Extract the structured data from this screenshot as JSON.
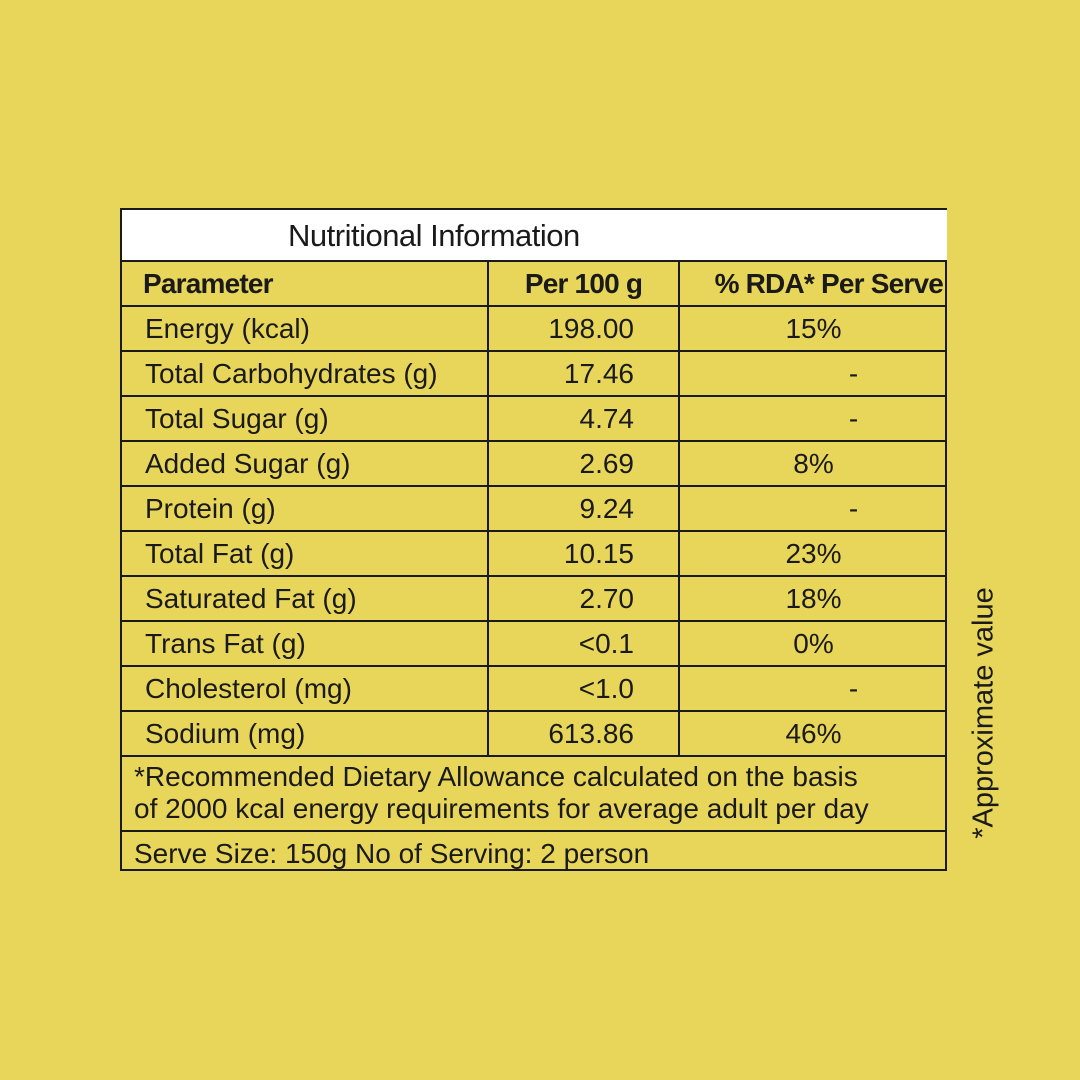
{
  "title": "Nutritional Information",
  "headers": {
    "parameter": "Parameter",
    "per100": "Per 100 g",
    "rda": "% RDA* Per Serve"
  },
  "rows": [
    {
      "parameter": "Energy (kcal)",
      "per100": "198.00",
      "rda": "15%"
    },
    {
      "parameter": "Total Carbohydrates (g)",
      "per100": "17.46",
      "rda": "-"
    },
    {
      "parameter": "Total Sugar (g)",
      "per100": "4.74",
      "rda": "-"
    },
    {
      "parameter": "Added Sugar (g)",
      "per100": "2.69",
      "rda": "8%"
    },
    {
      "parameter": "Protein (g)",
      "per100": "9.24",
      "rda": "-"
    },
    {
      "parameter": "Total Fat (g)",
      "per100": "10.15",
      "rda": "23%"
    },
    {
      "parameter": "Saturated Fat (g)",
      "per100": "2.70",
      "rda": "18%"
    },
    {
      "parameter": "Trans Fat (g)",
      "per100": "<0.1",
      "rda": "0%"
    },
    {
      "parameter": "Cholesterol (mg)",
      "per100": "<1.0",
      "rda": "-"
    },
    {
      "parameter": "Sodium (mg)",
      "per100": "613.86",
      "rda": "46%"
    }
  ],
  "footnote": {
    "line1": "*Recommended Dietary Allowance calculated on the basis",
    "line2": "of 2000 kcal energy requirements for average  adult per day"
  },
  "serve_info": "Serve Size: 150g No of Serving: 2 person",
  "side_note": "*Approximate value",
  "colors": {
    "background": "#e8d65a",
    "title_bar": "#ffffff",
    "lines": "#1a1a1a"
  }
}
